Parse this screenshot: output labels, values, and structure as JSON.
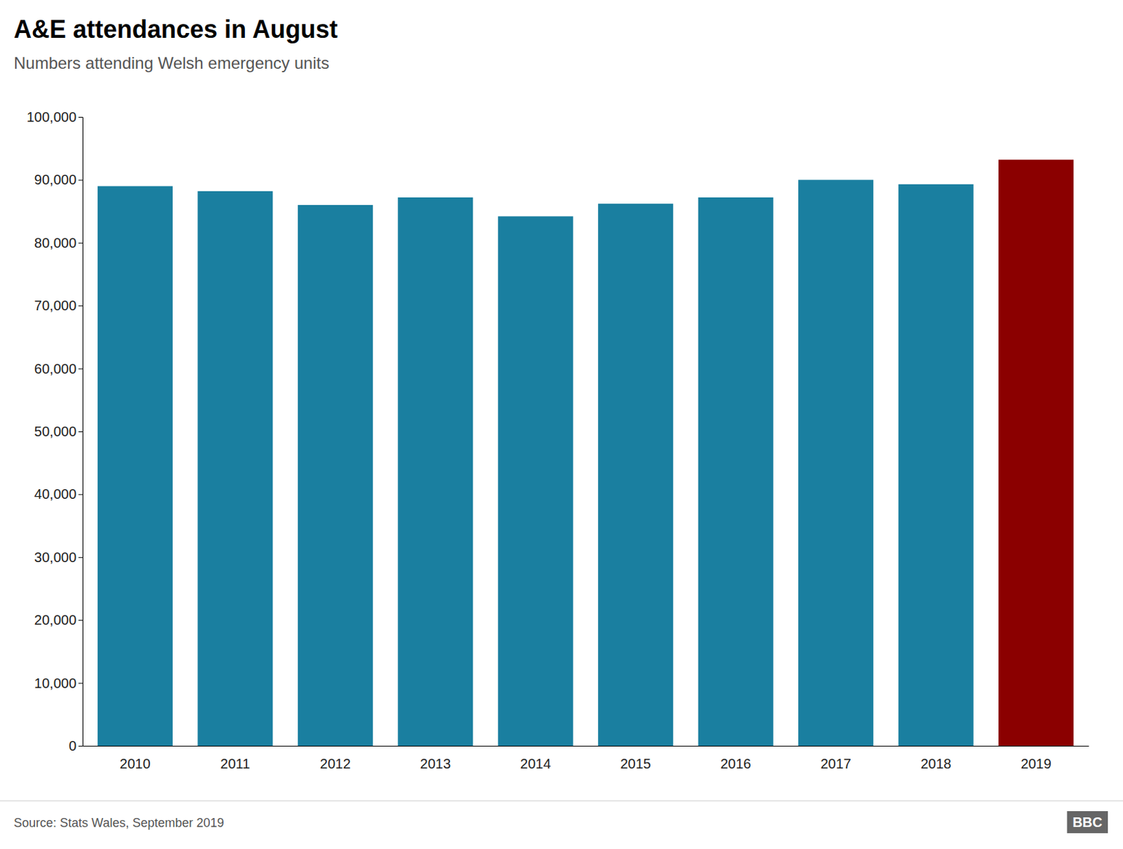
{
  "chart_data": {
    "type": "bar",
    "title": "A&E attendances in August",
    "subtitle": "Numbers attending Welsh emergency units",
    "source": "Source: Stats Wales, September 2019",
    "annotations": [
      "BBC"
    ],
    "categories": [
      "2010",
      "2011",
      "2012",
      "2013",
      "2014",
      "2015",
      "2016",
      "2017",
      "2018",
      "2019"
    ],
    "values": [
      89000,
      88200,
      86000,
      87200,
      84200,
      86200,
      87200,
      90000,
      89300,
      93200
    ],
    "colors": [
      "#1a7fa0",
      "#1a7fa0",
      "#1a7fa0",
      "#1a7fa0",
      "#1a7fa0",
      "#1a7fa0",
      "#1a7fa0",
      "#1a7fa0",
      "#1a7fa0",
      "#8b0000"
    ],
    "ylim": [
      0,
      100000
    ],
    "yticks": [
      0,
      {
        "value": 10000,
        "label": "10,000"
      },
      {
        "value": 20000,
        "label": "20,000"
      },
      {
        "value": 30000,
        "label": "30,000"
      },
      {
        "value": 40000,
        "label": "40,000"
      },
      {
        "value": 50000,
        "label": "50,000"
      },
      {
        "value": 60000,
        "label": "60,000"
      },
      {
        "value": 70000,
        "label": "70,000"
      },
      {
        "value": 80000,
        "label": "80,000"
      },
      {
        "value": 90000,
        "label": "90,000"
      },
      {
        "value": 100000,
        "label": "100,000"
      }
    ],
    "grid": false
  }
}
